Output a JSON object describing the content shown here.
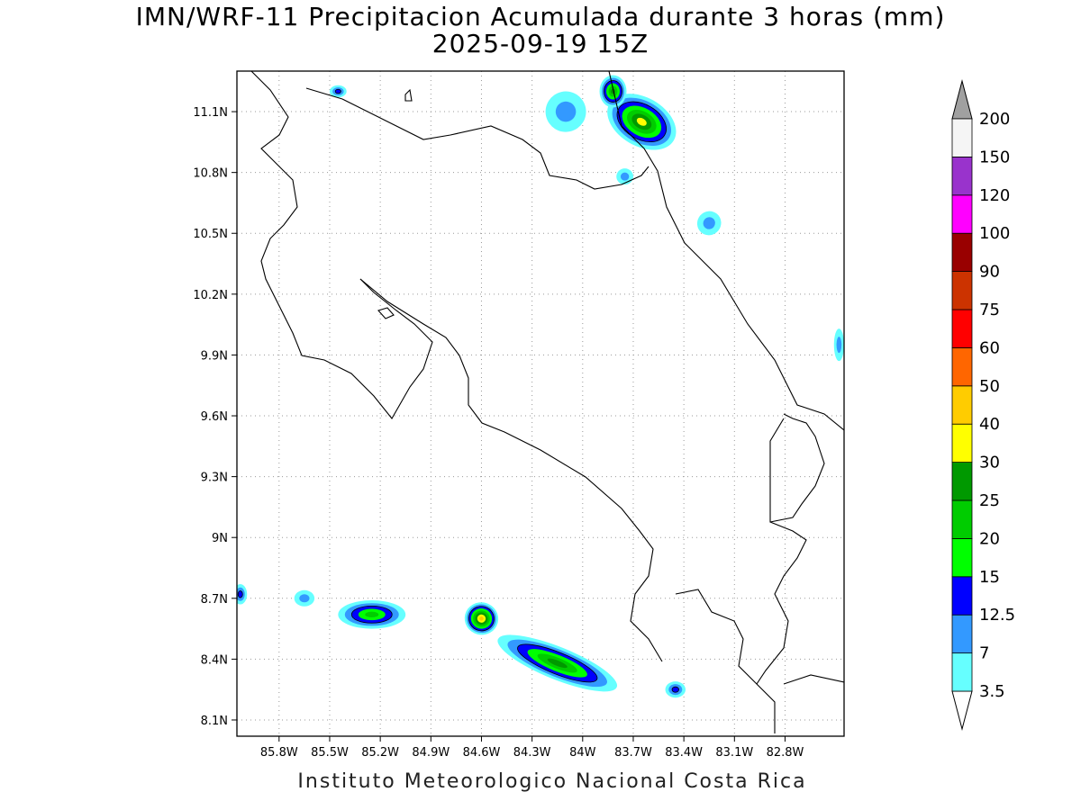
{
  "title_line1": "IMN/WRF-11 Precipitacion Acumulada durante 3 horas (mm)",
  "title_line2": "2025-09-19 15Z",
  "footer": "Instituto Meteorologico Nacional Costa Rica",
  "map": {
    "lon_range": [
      -86.05,
      -82.45
    ],
    "lat_range": [
      8.02,
      11.3
    ],
    "lat_ticks": [
      {
        "value": 11.1,
        "label": "11.1N"
      },
      {
        "value": 10.8,
        "label": "10.8N"
      },
      {
        "value": 10.5,
        "label": "10.5N"
      },
      {
        "value": 10.2,
        "label": "10.2N"
      },
      {
        "value": 9.9,
        "label": "9.9N"
      },
      {
        "value": 9.6,
        "label": "9.6N"
      },
      {
        "value": 9.3,
        "label": "9.3N"
      },
      {
        "value": 9.0,
        "label": "9N"
      },
      {
        "value": 8.7,
        "label": "8.7N"
      },
      {
        "value": 8.4,
        "label": "8.4N"
      },
      {
        "value": 8.1,
        "label": "8.1N"
      }
    ],
    "lon_ticks": [
      {
        "value": -85.8,
        "label": "85.8W"
      },
      {
        "value": -85.5,
        "label": "85.5W"
      },
      {
        "value": -85.2,
        "label": "85.2W"
      },
      {
        "value": -84.9,
        "label": "84.9W"
      },
      {
        "value": -84.6,
        "label": "84.6W"
      },
      {
        "value": -84.3,
        "label": "84.3W"
      },
      {
        "value": -84.0,
        "label": "84W"
      },
      {
        "value": -83.7,
        "label": "83.7W"
      },
      {
        "value": -83.4,
        "label": "83.4W"
      },
      {
        "value": -83.1,
        "label": "83.1W"
      },
      {
        "value": -82.8,
        "label": "82.8W"
      }
    ],
    "grid": true
  },
  "colorbar": {
    "levels": [
      "3.5",
      "7",
      "12.5",
      "15",
      "20",
      "25",
      "30",
      "40",
      "50",
      "60",
      "75",
      "90",
      "100",
      "120",
      "150",
      "200"
    ],
    "colors": [
      "#66ffff",
      "#3399ff",
      "#0000ff",
      "#00ff00",
      "#00cc00",
      "#009900",
      "#ffff00",
      "#ffcc00",
      "#ff6600",
      "#ff0000",
      "#cc3300",
      "#990000",
      "#ff00ff",
      "#9933cc",
      "#f5f5f5"
    ],
    "upper_arrow_color": "#a0a0a0",
    "lower_arrow_color": "#ffffff"
  },
  "precip_cells": [
    {
      "lon": -83.65,
      "lat": 11.05,
      "rx": 0.22,
      "ry": 0.12,
      "rot": 30,
      "max_level": 7
    },
    {
      "lon": -83.82,
      "lat": 11.2,
      "rx": 0.08,
      "ry": 0.08,
      "rot": 0,
      "max_level": 6
    },
    {
      "lon": -84.1,
      "lat": 11.1,
      "rx": 0.12,
      "ry": 0.1,
      "rot": 10,
      "max_level": 2
    },
    {
      "lon": -83.75,
      "lat": 10.78,
      "rx": 0.05,
      "ry": 0.04,
      "rot": 0,
      "max_level": 2
    },
    {
      "lon": -83.25,
      "lat": 10.55,
      "rx": 0.07,
      "ry": 0.06,
      "rot": 40,
      "max_level": 2
    },
    {
      "lon": -85.45,
      "lat": 11.2,
      "rx": 0.05,
      "ry": 0.03,
      "rot": 0,
      "max_level": 3
    },
    {
      "lon": -85.25,
      "lat": 8.62,
      "rx": 0.2,
      "ry": 0.07,
      "rot": 0,
      "max_level": 5
    },
    {
      "lon": -84.6,
      "lat": 8.6,
      "rx": 0.1,
      "ry": 0.08,
      "rot": 15,
      "max_level": 8
    },
    {
      "lon": -84.15,
      "lat": 8.38,
      "rx": 0.38,
      "ry": 0.08,
      "rot": 22,
      "max_level": 6
    },
    {
      "lon": -83.45,
      "lat": 8.25,
      "rx": 0.06,
      "ry": 0.04,
      "rot": 0,
      "max_level": 3
    },
    {
      "lon": -86.03,
      "lat": 8.72,
      "rx": 0.04,
      "ry": 0.05,
      "rot": 0,
      "max_level": 3
    },
    {
      "lon": -85.65,
      "lat": 8.7,
      "rx": 0.06,
      "ry": 0.04,
      "rot": 0,
      "max_level": 2
    },
    {
      "lon": -82.48,
      "lat": 9.95,
      "rx": 0.03,
      "ry": 0.08,
      "rot": 0,
      "max_level": 2
    }
  ]
}
